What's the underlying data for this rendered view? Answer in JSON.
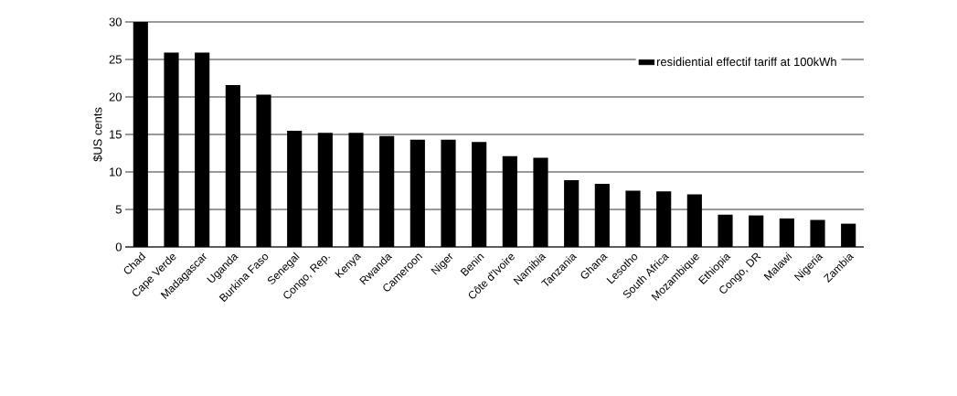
{
  "chart_data": {
    "type": "bar",
    "ylabel": "$US cents",
    "categories": [
      "Chad",
      "Cape Verde",
      "Madagascar",
      "Uganda",
      "Burkina Faso",
      "Senegal",
      "Congo, Rep.",
      "Kenya",
      "Rwanda",
      "Cameroon",
      "Niger",
      "Benin",
      "Côte d'Ivoire",
      "Namibia",
      "Tanzania",
      "Ghana",
      "Lesotho",
      "South Africa",
      "Mozambique",
      "Ethiopia",
      "Congo, DR",
      "Malawi",
      "Nigeria",
      "Zambia"
    ],
    "series": [
      {
        "name": "residiential effectif tariff at 100kWh",
        "color": "#000000",
        "values": [
          30,
          25.9,
          25.9,
          21.6,
          20.3,
          15.5,
          15.2,
          15.2,
          14.8,
          14.3,
          14.3,
          14.0,
          12.1,
          11.9,
          8.9,
          8.4,
          7.5,
          7.4,
          7.0,
          4.3,
          4.2,
          3.8,
          3.6,
          3.1
        ]
      }
    ],
    "ylim": [
      0,
      30
    ],
    "yticks": [
      0,
      5,
      10,
      15,
      20,
      25,
      30
    ],
    "grid": "y",
    "legend": "top right"
  }
}
